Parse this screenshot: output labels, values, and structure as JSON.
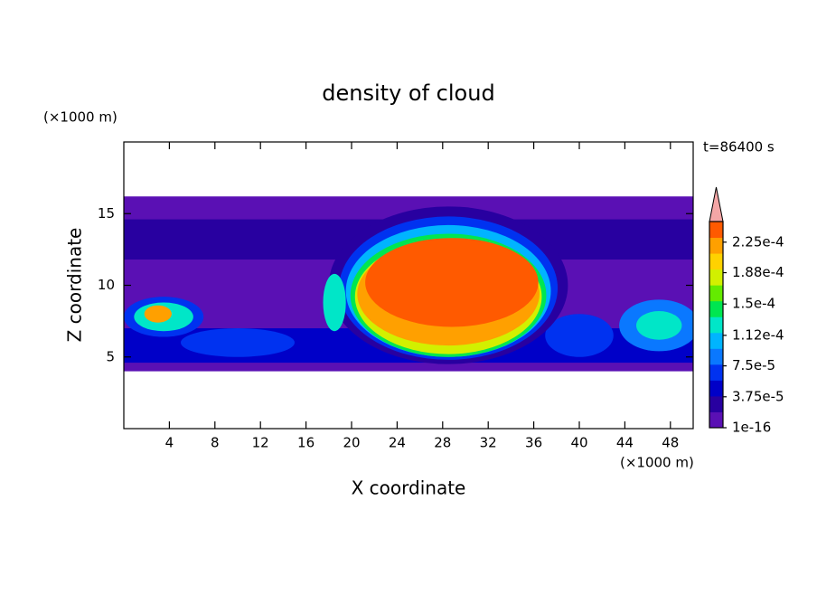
{
  "chart_data": {
    "type": "contour",
    "title": "density of cloud",
    "xlabel": "X coordinate",
    "ylabel": "Z coordinate",
    "xunit": "(×1000 m)",
    "yunit": "(×1000 m)",
    "annotation": "t=86400 s",
    "xlim": [
      0,
      50
    ],
    "ylim": [
      0,
      20
    ],
    "xticks": [
      4,
      8,
      12,
      16,
      20,
      24,
      28,
      32,
      36,
      40,
      44,
      48
    ],
    "yticks": [
      5,
      10,
      15
    ],
    "colorbar": {
      "clim": [
        1e-16,
        0.00025
      ],
      "ticks": [
        1e-16,
        {
          "value": 3.75e-05,
          "label": "3.75e-5"
        },
        {
          "value": 7.5e-05,
          "label": "7.5e-5"
        },
        {
          "value": 0.000112,
          "label": "1.12e-4"
        },
        {
          "value": 0.00015,
          "label": "1.5e-4"
        },
        {
          "value": 0.000188,
          "label": "1.88e-4"
        },
        {
          "value": 0.000225,
          "label": "2.25e-4"
        }
      ],
      "colors": [
        "#5a10b4",
        "#2800a0",
        "#0000c8",
        "#0032f0",
        "#0a78ff",
        "#00b4ff",
        "#00e6c8",
        "#00e650",
        "#64eb00",
        "#d2f000",
        "#ffd200",
        "#ffa000",
        "#ff5a00"
      ],
      "extend_color": "#f4a6a6"
    }
  }
}
